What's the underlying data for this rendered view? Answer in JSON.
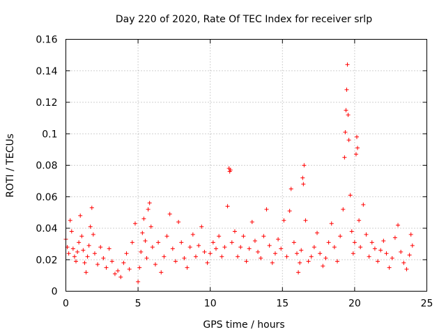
{
  "chart_data": {
    "type": "scatter",
    "title": "Day 220 of 2020, Rate Of TEC Index for receiver srlp",
    "xlabel": "GPS time / hours",
    "ylabel": "ROTI / TECUs",
    "xlim": [
      0,
      25
    ],
    "ylim": [
      0,
      0.16
    ],
    "xticks": [
      0,
      5,
      10,
      15,
      20,
      25
    ],
    "xtick_labels": [
      "0",
      "5",
      "10",
      "15",
      "20",
      "25"
    ],
    "yticks": [
      0,
      0.02,
      0.04,
      0.06,
      0.08,
      0.1,
      0.12,
      0.14,
      0.16
    ],
    "ytick_labels": [
      "0",
      "0.02",
      "0.04",
      "0.06",
      "0.08",
      "0.1",
      "0.12",
      "0.14",
      "0.16"
    ],
    "grid": true,
    "marker": "+",
    "color": "#ff0000",
    "series": [
      {
        "name": "ROTI",
        "points": [
          [
            0.0,
            0.033
          ],
          [
            0.1,
            0.028
          ],
          [
            0.2,
            0.024
          ],
          [
            0.3,
            0.045
          ],
          [
            0.4,
            0.038
          ],
          [
            0.5,
            0.027
          ],
          [
            0.6,
            0.022
          ],
          [
            0.7,
            0.019
          ],
          [
            0.8,
            0.025
          ],
          [
            0.9,
            0.031
          ],
          [
            1.0,
            0.048
          ],
          [
            1.1,
            0.035
          ],
          [
            1.2,
            0.026
          ],
          [
            1.3,
            0.018
          ],
          [
            1.4,
            0.012
          ],
          [
            1.5,
            0.022
          ],
          [
            1.6,
            0.029
          ],
          [
            1.7,
            0.041
          ],
          [
            1.8,
            0.053
          ],
          [
            1.9,
            0.036
          ],
          [
            2.0,
            0.024
          ],
          [
            2.2,
            0.017
          ],
          [
            2.4,
            0.028
          ],
          [
            2.6,
            0.021
          ],
          [
            2.8,
            0.015
          ],
          [
            3.0,
            0.027
          ],
          [
            3.2,
            0.019
          ],
          [
            3.4,
            0.011
          ],
          [
            3.6,
            0.013
          ],
          [
            3.8,
            0.009
          ],
          [
            4.0,
            0.018
          ],
          [
            4.2,
            0.024
          ],
          [
            4.4,
            0.014
          ],
          [
            4.6,
            0.031
          ],
          [
            4.8,
            0.043
          ],
          [
            5.0,
            0.006
          ],
          [
            5.1,
            0.015
          ],
          [
            5.2,
            0.025
          ],
          [
            5.3,
            0.037
          ],
          [
            5.4,
            0.046
          ],
          [
            5.5,
            0.032
          ],
          [
            5.6,
            0.021
          ],
          [
            5.7,
            0.052
          ],
          [
            5.8,
            0.056
          ],
          [
            5.9,
            0.041
          ],
          [
            6.0,
            0.028
          ],
          [
            6.2,
            0.017
          ],
          [
            6.4,
            0.031
          ],
          [
            6.6,
            0.012
          ],
          [
            6.8,
            0.022
          ],
          [
            7.0,
            0.035
          ],
          [
            7.2,
            0.049
          ],
          [
            7.4,
            0.027
          ],
          [
            7.6,
            0.019
          ],
          [
            7.8,
            0.044
          ],
          [
            8.0,
            0.031
          ],
          [
            8.2,
            0.021
          ],
          [
            8.4,
            0.015
          ],
          [
            8.6,
            0.028
          ],
          [
            8.8,
            0.036
          ],
          [
            9.0,
            0.022
          ],
          [
            9.2,
            0.029
          ],
          [
            9.4,
            0.041
          ],
          [
            9.6,
            0.025
          ],
          [
            9.8,
            0.018
          ],
          [
            10.0,
            0.024
          ],
          [
            10.2,
            0.031
          ],
          [
            10.4,
            0.027
          ],
          [
            10.6,
            0.035
          ],
          [
            10.8,
            0.022
          ],
          [
            11.0,
            0.028
          ],
          [
            11.2,
            0.054
          ],
          [
            11.3,
            0.078
          ],
          [
            11.35,
            0.076
          ],
          [
            11.4,
            0.077
          ],
          [
            11.5,
            0.031
          ],
          [
            11.7,
            0.038
          ],
          [
            11.9,
            0.022
          ],
          [
            12.1,
            0.028
          ],
          [
            12.3,
            0.035
          ],
          [
            12.5,
            0.019
          ],
          [
            12.7,
            0.027
          ],
          [
            12.9,
            0.044
          ],
          [
            13.1,
            0.032
          ],
          [
            13.3,
            0.025
          ],
          [
            13.5,
            0.021
          ],
          [
            13.7,
            0.035
          ],
          [
            13.9,
            0.052
          ],
          [
            14.1,
            0.029
          ],
          [
            14.3,
            0.018
          ],
          [
            14.5,
            0.024
          ],
          [
            14.7,
            0.033
          ],
          [
            14.9,
            0.027
          ],
          [
            15.1,
            0.045
          ],
          [
            15.3,
            0.022
          ],
          [
            15.5,
            0.051
          ],
          [
            15.6,
            0.065
          ],
          [
            15.8,
            0.031
          ],
          [
            16.0,
            0.024
          ],
          [
            16.1,
            0.012
          ],
          [
            16.2,
            0.018
          ],
          [
            16.3,
            0.026
          ],
          [
            16.4,
            0.072
          ],
          [
            16.45,
            0.068
          ],
          [
            16.5,
            0.08
          ],
          [
            16.6,
            0.045
          ],
          [
            16.8,
            0.019
          ],
          [
            17.0,
            0.022
          ],
          [
            17.2,
            0.028
          ],
          [
            17.4,
            0.037
          ],
          [
            17.6,
            0.024
          ],
          [
            17.8,
            0.016
          ],
          [
            18.0,
            0.021
          ],
          [
            18.2,
            0.031
          ],
          [
            18.4,
            0.043
          ],
          [
            18.6,
            0.028
          ],
          [
            18.8,
            0.019
          ],
          [
            19.0,
            0.035
          ],
          [
            19.2,
            0.052
          ],
          [
            19.3,
            0.085
          ],
          [
            19.35,
            0.101
          ],
          [
            19.4,
            0.115
          ],
          [
            19.45,
            0.128
          ],
          [
            19.5,
            0.144
          ],
          [
            19.55,
            0.112
          ],
          [
            19.6,
            0.096
          ],
          [
            19.7,
            0.061
          ],
          [
            19.8,
            0.038
          ],
          [
            19.9,
            0.024
          ],
          [
            20.0,
            0.031
          ],
          [
            20.1,
            0.087
          ],
          [
            20.15,
            0.098
          ],
          [
            20.2,
            0.091
          ],
          [
            20.3,
            0.045
          ],
          [
            20.4,
            0.028
          ],
          [
            20.6,
            0.055
          ],
          [
            20.8,
            0.036
          ],
          [
            21.0,
            0.022
          ],
          [
            21.2,
            0.031
          ],
          [
            21.4,
            0.027
          ],
          [
            21.6,
            0.019
          ],
          [
            21.8,
            0.026
          ],
          [
            22.0,
            0.032
          ],
          [
            22.2,
            0.024
          ],
          [
            22.4,
            0.015
          ],
          [
            22.6,
            0.021
          ],
          [
            22.8,
            0.034
          ],
          [
            23.0,
            0.042
          ],
          [
            23.2,
            0.025
          ],
          [
            23.4,
            0.018
          ],
          [
            23.6,
            0.014
          ],
          [
            23.8,
            0.023
          ],
          [
            23.9,
            0.036
          ],
          [
            24.0,
            0.029
          ]
        ]
      }
    ]
  }
}
